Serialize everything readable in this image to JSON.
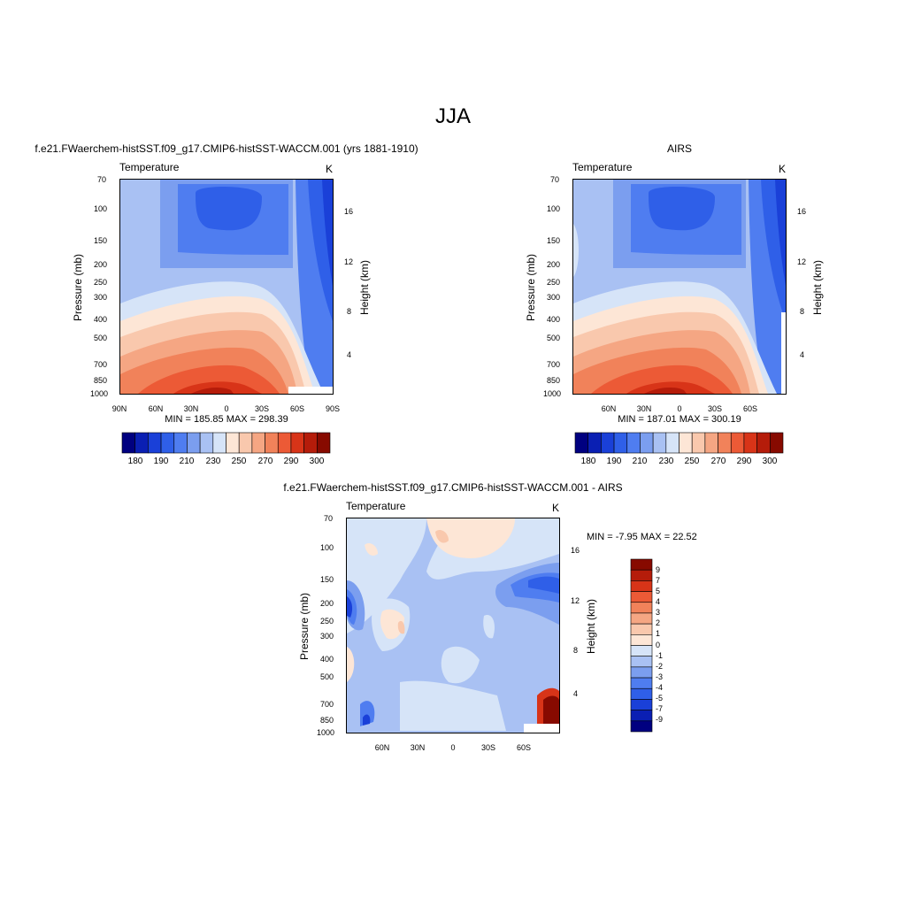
{
  "figure": {
    "title": "JJA"
  },
  "colors": {
    "temp_palette": [
      "#000080",
      "#0a1fb3",
      "#1a40d8",
      "#2f5fe8",
      "#4f7df0",
      "#7b9eef",
      "#a9c1f3",
      "#d6e4f8",
      "#fde6d6",
      "#f9c8ad",
      "#f5a683",
      "#f1825a",
      "#ec5a36",
      "#d83418",
      "#b51c0a",
      "#870a00"
    ],
    "diff_palette": [
      "#000080",
      "#0a1fb3",
      "#1a40d8",
      "#2f5fe8",
      "#4f7df0",
      "#7b9eef",
      "#a9c1f3",
      "#d6e4f8",
      "#fde6d6",
      "#f9c8ad",
      "#f5a683",
      "#f1825a",
      "#ec5a36",
      "#d83418",
      "#b51c0a",
      "#870a00"
    ]
  },
  "chart_data": [
    {
      "type": "heatmap",
      "title": "f.e21.FWaerchem-histSST.f09_g17.CMIP6-histSST-WACCM.001 (yrs 1881-1910)",
      "left_label": "Temperature",
      "right_label": "K",
      "ylabel": "Pressure (mb)",
      "ylabel_right": "Height (km)",
      "x_ticks": [
        "90N",
        "60N",
        "30N",
        "0",
        "30S",
        "60S",
        "90S"
      ],
      "y_ticks": [
        "70",
        "100",
        "150",
        "200",
        "250",
        "300",
        "400",
        "500",
        "700",
        "850",
        "1000"
      ],
      "height_ticks": [
        "16",
        "12",
        "8",
        "4"
      ],
      "stats": "MIN = 185.85  MAX = 298.39",
      "colorbar_labels": [
        "180",
        "190",
        "210",
        "230",
        "250",
        "270",
        "290",
        "300"
      ],
      "zlim": [
        180,
        300
      ]
    },
    {
      "type": "heatmap",
      "title": "AIRS",
      "left_label": "Temperature",
      "right_label": "K",
      "ylabel": "Pressure (mb)",
      "ylabel_right": "Height (km)",
      "x_ticks": [
        "60N",
        "30N",
        "0",
        "30S",
        "60S"
      ],
      "y_ticks": [
        "70",
        "100",
        "150",
        "200",
        "250",
        "300",
        "400",
        "500",
        "700",
        "850",
        "1000"
      ],
      "height_ticks": [
        "16",
        "12",
        "8",
        "4"
      ],
      "stats": "MIN = 187.01  MAX = 300.19",
      "colorbar_labels": [
        "180",
        "190",
        "210",
        "230",
        "250",
        "270",
        "290",
        "300"
      ],
      "zlim": [
        180,
        300
      ]
    },
    {
      "type": "heatmap",
      "title": "f.e21.FWaerchem-histSST.f09_g17.CMIP6-histSST-WACCM.001 - AIRS",
      "left_label": "Temperature",
      "right_label": "K",
      "ylabel": "Pressure (mb)",
      "ylabel_right": "Height (km)",
      "x_ticks": [
        "60N",
        "30N",
        "0",
        "30S",
        "60S"
      ],
      "y_ticks": [
        "70",
        "100",
        "150",
        "200",
        "250",
        "300",
        "400",
        "500",
        "700",
        "850",
        "1000"
      ],
      "height_ticks": [
        "16",
        "12",
        "8",
        "4"
      ],
      "stats": "MIN =  -7.95  MAX =  22.52",
      "colorbar_labels": [
        "9",
        "7",
        "5",
        "4",
        "3",
        "2",
        "1",
        "0",
        "-1",
        "-2",
        "-3",
        "-4",
        "-5",
        "-7",
        "-9"
      ],
      "zlim": [
        -9,
        9
      ]
    }
  ]
}
